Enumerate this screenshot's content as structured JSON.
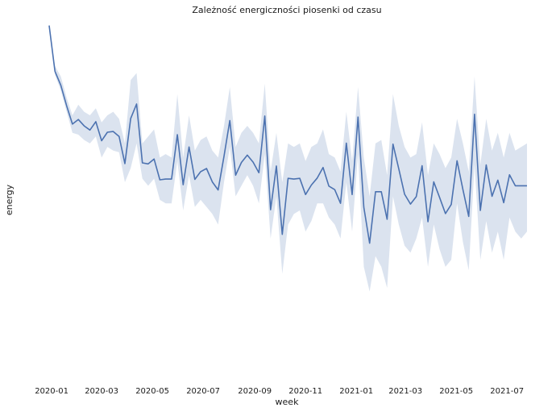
{
  "chart_data": {
    "type": "line",
    "title": "Zależność energiczności piosenki od czasu",
    "xlabel": "week",
    "ylabel": "energy",
    "x_tick_labels": [
      "2020-01",
      "2020-03",
      "2020-05",
      "2020-07",
      "2020-09",
      "2020-11",
      "2021-01",
      "2021-03",
      "2021-05",
      "2021-07"
    ],
    "x_range": [
      "2019-12-29",
      "2021-07-25"
    ],
    "y_tick_labels": [],
    "y_range": [
      0.0,
      1.0
    ],
    "grid": false,
    "legend": "none",
    "colors": {
      "line": "#4c72b0",
      "band": "#4c72b0"
    },
    "series": [
      {
        "band": "confidence interval",
        "x": [
          "2019-12-29",
          "2020-01-05",
          "2020-01-12",
          "2020-01-19",
          "2020-01-26",
          "2020-02-02",
          "2020-02-09",
          "2020-02-16",
          "2020-02-23",
          "2020-03-01",
          "2020-03-08",
          "2020-03-15",
          "2020-03-22",
          "2020-03-29",
          "2020-04-05",
          "2020-04-12",
          "2020-04-19",
          "2020-04-26",
          "2020-05-03",
          "2020-05-10",
          "2020-05-17",
          "2020-05-24",
          "2020-05-31",
          "2020-06-07",
          "2020-06-14",
          "2020-06-21",
          "2020-06-28",
          "2020-07-05",
          "2020-07-12",
          "2020-07-19",
          "2020-07-26",
          "2020-08-02",
          "2020-08-09",
          "2020-08-16",
          "2020-08-23",
          "2020-08-30",
          "2020-09-06",
          "2020-09-13",
          "2020-09-20",
          "2020-09-27",
          "2020-10-04",
          "2020-10-11",
          "2020-10-18",
          "2020-10-25",
          "2020-11-01",
          "2020-11-08",
          "2020-11-15",
          "2020-11-22",
          "2020-11-29",
          "2020-12-06",
          "2020-12-13",
          "2020-12-20",
          "2020-12-27",
          "2021-01-03",
          "2021-01-10",
          "2021-01-17",
          "2021-01-24",
          "2021-01-31",
          "2021-02-07",
          "2021-02-14",
          "2021-02-21",
          "2021-02-28",
          "2021-03-07",
          "2021-03-14",
          "2021-03-21",
          "2021-03-28",
          "2021-04-04",
          "2021-04-11",
          "2021-04-18",
          "2021-04-25",
          "2021-05-02",
          "2021-05-09",
          "2021-05-16",
          "2021-05-23",
          "2021-05-30",
          "2021-06-06",
          "2021-06-13",
          "2021-06-20",
          "2021-06-27",
          "2021-07-04",
          "2021-07-11",
          "2021-07-18",
          "2021-07-25"
        ],
        "y": [
          0.985,
          0.855,
          0.815,
          0.757,
          0.705,
          0.718,
          0.7,
          0.688,
          0.712,
          0.658,
          0.682,
          0.684,
          0.67,
          0.593,
          0.721,
          0.762,
          0.595,
          0.592,
          0.606,
          0.547,
          0.549,
          0.549,
          0.675,
          0.533,
          0.64,
          0.548,
          0.57,
          0.579,
          0.541,
          0.518,
          0.614,
          0.715,
          0.56,
          0.596,
          0.617,
          0.597,
          0.567,
          0.728,
          0.462,
          0.586,
          0.392,
          0.551,
          0.549,
          0.551,
          0.505,
          0.532,
          0.552,
          0.582,
          0.529,
          0.519,
          0.48,
          0.651,
          0.505,
          0.725,
          0.469,
          0.367,
          0.513,
          0.513,
          0.435,
          0.648,
          0.578,
          0.506,
          0.478,
          0.499,
          0.587,
          0.428,
          0.541,
          0.497,
          0.451,
          0.477,
          0.601,
          0.519,
          0.443,
          0.733,
          0.46,
          0.589,
          0.5,
          0.546,
          0.482,
          0.561,
          0.53,
          0.53,
          0.53
        ],
        "lower": [
          0.985,
          0.845,
          0.8,
          0.74,
          0.68,
          0.675,
          0.66,
          0.65,
          0.67,
          0.61,
          0.64,
          0.63,
          0.625,
          0.54,
          0.58,
          0.65,
          0.55,
          0.53,
          0.55,
          0.49,
          0.48,
          0.48,
          0.6,
          0.46,
          0.56,
          0.47,
          0.49,
          0.47,
          0.45,
          0.42,
          0.54,
          0.64,
          0.5,
          0.53,
          0.56,
          0.53,
          0.48,
          0.62,
          0.38,
          0.5,
          0.28,
          0.42,
          0.45,
          0.46,
          0.4,
          0.43,
          0.48,
          0.48,
          0.44,
          0.42,
          0.38,
          0.54,
          0.4,
          0.62,
          0.3,
          0.23,
          0.33,
          0.3,
          0.24,
          0.5,
          0.42,
          0.36,
          0.34,
          0.38,
          0.44,
          0.3,
          0.42,
          0.35,
          0.3,
          0.32,
          0.48,
          0.37,
          0.29,
          0.59,
          0.32,
          0.43,
          0.34,
          0.4,
          0.32,
          0.44,
          0.4,
          0.38,
          0.4
        ],
        "upper": [
          0.985,
          0.87,
          0.84,
          0.78,
          0.73,
          0.76,
          0.74,
          0.73,
          0.75,
          0.71,
          0.73,
          0.74,
          0.72,
          0.65,
          0.83,
          0.85,
          0.65,
          0.67,
          0.69,
          0.61,
          0.62,
          0.61,
          0.79,
          0.61,
          0.73,
          0.63,
          0.66,
          0.67,
          0.63,
          0.61,
          0.7,
          0.81,
          0.64,
          0.68,
          0.7,
          0.68,
          0.65,
          0.82,
          0.57,
          0.68,
          0.54,
          0.65,
          0.64,
          0.65,
          0.6,
          0.64,
          0.65,
          0.69,
          0.62,
          0.61,
          0.57,
          0.74,
          0.6,
          0.81,
          0.61,
          0.5,
          0.65,
          0.66,
          0.56,
          0.79,
          0.7,
          0.64,
          0.61,
          0.62,
          0.71,
          0.56,
          0.65,
          0.62,
          0.58,
          0.61,
          0.72,
          0.65,
          0.57,
          0.84,
          0.59,
          0.72,
          0.63,
          0.68,
          0.61,
          0.68,
          0.63,
          0.64,
          0.65
        ]
      }
    ]
  }
}
